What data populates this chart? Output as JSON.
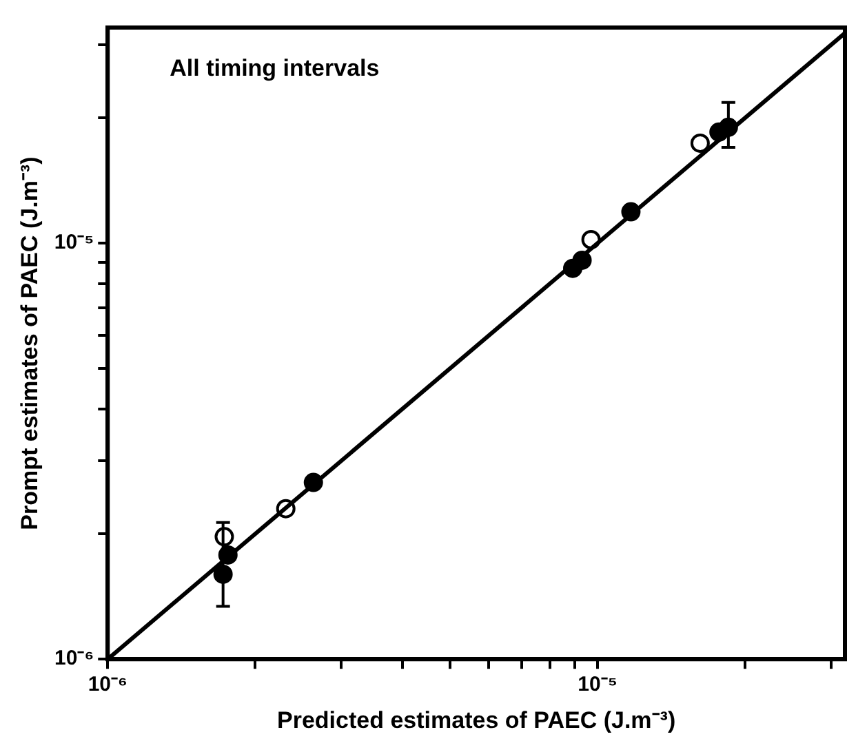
{
  "chart_data": {
    "type": "scatter",
    "xlabel": "Predicted estimates of PAEC (J.m⁻³)",
    "ylabel": "Prompt estimates of PAEC (J.m⁻³)",
    "annotations": [
      "All timing intervals"
    ],
    "log": "xy",
    "grid": false,
    "legend": false,
    "marker": "circle",
    "xlim": [
      1e-06,
      3.2e-05
    ],
    "ylim": [
      1e-06,
      3.3e-05
    ],
    "xticks": [
      {
        "value": 1e-06,
        "label": "10⁻⁶"
      },
      {
        "value": 2e-06,
        "label": null
      },
      {
        "value": 3e-06,
        "label": null
      },
      {
        "value": 4e-06,
        "label": null
      },
      {
        "value": 5e-06,
        "label": null
      },
      {
        "value": 6e-06,
        "label": null
      },
      {
        "value": 7e-06,
        "label": null
      },
      {
        "value": 8e-06,
        "label": null
      },
      {
        "value": 9e-06,
        "label": null
      },
      {
        "value": 1e-05,
        "label": "10⁻⁵"
      },
      {
        "value": 2e-05,
        "label": null
      },
      {
        "value": 3e-05,
        "label": null
      }
    ],
    "yticks": [
      {
        "value": 1e-06,
        "label": "10⁻⁶"
      },
      {
        "value": 2e-06,
        "label": null
      },
      {
        "value": 3e-06,
        "label": null
      },
      {
        "value": 4e-06,
        "label": null
      },
      {
        "value": 5e-06,
        "label": null
      },
      {
        "value": 6e-06,
        "label": null
      },
      {
        "value": 7e-06,
        "label": null
      },
      {
        "value": 8e-06,
        "label": null
      },
      {
        "value": 9e-06,
        "label": null
      },
      {
        "value": 1e-05,
        "label": "10⁻⁵"
      },
      {
        "value": 2e-05,
        "label": null
      },
      {
        "value": 3e-05,
        "label": null
      }
    ],
    "series": [
      {
        "type": "line",
        "marker": "none",
        "color": "#000000",
        "x": [
          1e-06,
          3.2e-05
        ],
        "values": [
          1e-06,
          3.2e-05
        ]
      },
      {
        "color": "#000000",
        "x": [
          1.72e-06,
          1.76e-06,
          2.63e-06,
          8.9e-06,
          9.3e-06,
          1.17e-05,
          1.77e-05,
          1.85e-05
        ],
        "values": [
          1.6e-06,
          1.78e-06,
          2.66e-06,
          8.7e-06,
          9.1e-06,
          1.19e-05,
          1.85e-05,
          1.9e-05
        ],
        "errors": [
          [
            1.34e-06,
            2.13e-06
          ],
          null,
          null,
          null,
          null,
          null,
          null,
          [
            1.7e-05,
            2.18e-05
          ]
        ]
      },
      {
        "color": "#ffffff",
        "x": [
          1.73e-06,
          2.31e-06,
          9.7e-06,
          1.62e-05
        ],
        "values": [
          1.97e-06,
          2.3e-06,
          1.02e-05,
          1.74e-05
        ]
      }
    ]
  }
}
